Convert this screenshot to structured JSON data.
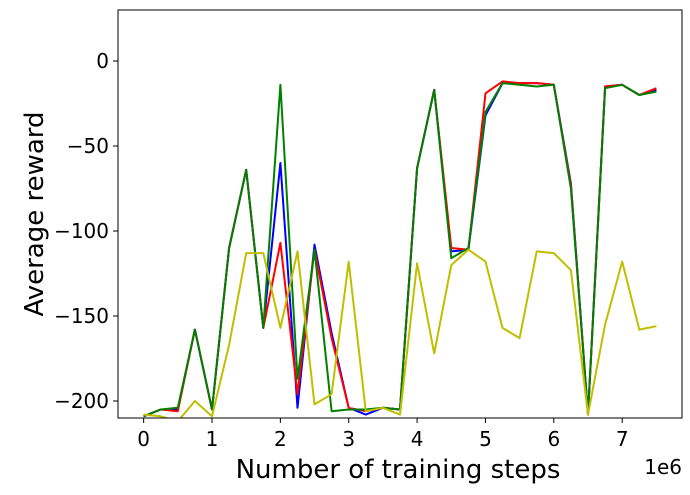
{
  "chart_data": {
    "type": "line",
    "xlabel": "Number of training steps",
    "ylabel": "Average reward",
    "x_offset_label": "1e6",
    "xlim": [
      -0.375,
      7.875
    ],
    "ylim": [
      -210,
      30
    ],
    "x_ticks": [
      0,
      1,
      2,
      3,
      4,
      5,
      6,
      7
    ],
    "y_ticks": [
      0,
      -50,
      -100,
      -150,
      -200
    ],
    "grid": false,
    "legend": "none",
    "x": [
      0,
      0.25,
      0.5,
      0.75,
      1,
      1.25,
      1.5,
      1.75,
      2,
      2.25,
      2.5,
      2.75,
      3,
      3.25,
      3.5,
      3.75,
      4,
      4.25,
      4.5,
      4.75,
      5,
      5.25,
      5.5,
      5.75,
      6,
      6.25,
      6.5,
      6.75,
      7,
      7.25,
      7.5
    ],
    "series": [
      {
        "color": "#0000ff",
        "values": [
          -209,
          -205,
          -205,
          -158,
          -205,
          -110,
          -64,
          -157,
          -60,
          -204,
          -108,
          -160,
          -204,
          -208,
          -204,
          -205,
          -63,
          -17,
          -112,
          -111,
          -32,
          -13,
          -13,
          -13,
          -14,
          -72,
          -208,
          -15,
          -14,
          -20,
          -17
        ]
      },
      {
        "color": "#ff0000",
        "values": [
          -209,
          -205,
          -206,
          -158,
          -205,
          -110,
          -64,
          -157,
          -107,
          -196,
          -111,
          -163,
          -204,
          -206,
          -204,
          -205,
          -63,
          -17,
          -110,
          -111,
          -19,
          -12,
          -13,
          -13,
          -14,
          -73,
          -208,
          -15,
          -14,
          -20,
          -16
        ]
      },
      {
        "color": "#008000",
        "values": [
          -209,
          -205,
          -204,
          -158,
          -205,
          -110,
          -64,
          -157,
          -14,
          -187,
          -111,
          -206,
          -205,
          -205,
          -204,
          -205,
          -63,
          -17,
          -116,
          -110,
          -30,
          -13,
          -14,
          -15,
          -14,
          -75,
          -208,
          -16,
          -14,
          -20,
          -18
        ]
      },
      {
        "color": "#bfbf00",
        "values": [
          -208,
          -209,
          -212,
          -200,
          -209,
          -167,
          -113,
          -113,
          -157,
          -112,
          -202,
          -196,
          -118,
          -206,
          -204,
          -208,
          -119,
          -172,
          -120,
          -111,
          -118,
          -157,
          -163,
          -112,
          -113,
          -123,
          -208,
          -155,
          -118,
          -158,
          -156
        ]
      }
    ]
  }
}
